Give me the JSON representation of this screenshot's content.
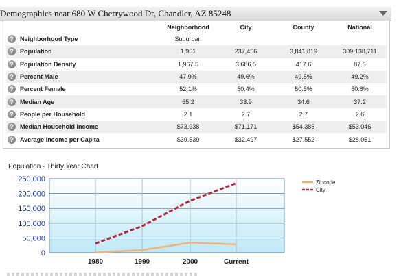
{
  "header": {
    "title": "Demographics near 680 W Cherrywood Dr, Chandler, AZ 85248"
  },
  "table": {
    "columns": [
      "",
      "Neighborhood",
      "City",
      "County",
      "National"
    ],
    "rows": [
      {
        "label": "Neighborhood Type",
        "values": [
          "Suburban",
          "",
          "",
          ""
        ]
      },
      {
        "label": "Population",
        "values": [
          "1,951",
          "237,456",
          "3,841,819",
          "309,138,711"
        ]
      },
      {
        "label": "Population Density",
        "values": [
          "1,967.5",
          "3,686.5",
          "417.6",
          "87.5"
        ]
      },
      {
        "label": "Percent Male",
        "values": [
          "47.9%",
          "49.6%",
          "49.5%",
          "49.2%"
        ]
      },
      {
        "label": "Percent Female",
        "values": [
          "52.1%",
          "50.4%",
          "50.5%",
          "50.8%"
        ]
      },
      {
        "label": "Median Age",
        "values": [
          "65.2",
          "33.9",
          "34.6",
          "37.2"
        ]
      },
      {
        "label": "People per Household",
        "values": [
          "2.1",
          "2.7",
          "2.7",
          "2.6"
        ]
      },
      {
        "label": "Median Household Income",
        "values": [
          "$73,938",
          "$71,171",
          "$54,385",
          "$53,046"
        ]
      },
      {
        "label": "Average Income per Capita",
        "values": [
          "$39,539",
          "$32,497",
          "$27,552",
          "$28,051"
        ]
      }
    ]
  },
  "chart_title": "Population - Thirty Year Chart",
  "chart_data": {
    "type": "line",
    "categories": [
      "1980",
      "1990",
      "2000",
      "Current"
    ],
    "series": [
      {
        "name": "Zipcode",
        "values": [
          500,
          9000,
          34000,
          28000
        ],
        "color": "#f0b37a",
        "style": "solid"
      },
      {
        "name": "City",
        "values": [
          31000,
          90000,
          176000,
          235000
        ],
        "color": "#b52a3a",
        "style": "dashed"
      }
    ],
    "ylim": [
      0,
      250000
    ],
    "yticks": [
      "0",
      "50,000",
      "100,000",
      "150,000",
      "200,000",
      "250,000"
    ],
    "legend": "right",
    "grid": true
  }
}
